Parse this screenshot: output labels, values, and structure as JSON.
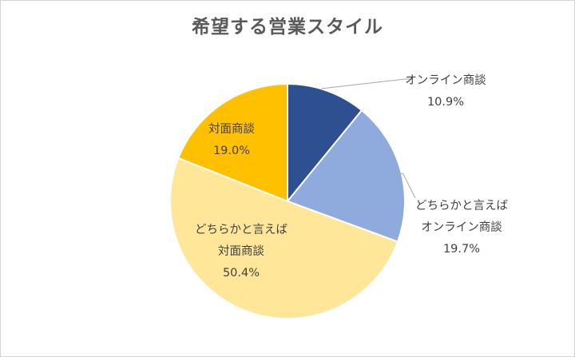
{
  "chart_data": {
    "type": "pie",
    "title": "希望する営業スタイル",
    "slices": [
      {
        "label_lines": [
          "オンライン商談"
        ],
        "value": 10.9,
        "value_text": "10.9%",
        "color": "#2e5090"
      },
      {
        "label_lines": [
          "どちらかと言えば",
          "オンライン商談"
        ],
        "value": 19.7,
        "value_text": "19.7%",
        "color": "#8faadc"
      },
      {
        "label_lines": [
          "どちらかと言えば",
          "対面商談"
        ],
        "value": 50.4,
        "value_text": "50.4%",
        "color": "#ffe699"
      },
      {
        "label_lines": [
          "対面商談"
        ],
        "value": 19.0,
        "value_text": "19.0%",
        "color": "#ffc000"
      }
    ],
    "start_angle": "12 o'clock",
    "direction": "clockwise",
    "legend": "none"
  }
}
